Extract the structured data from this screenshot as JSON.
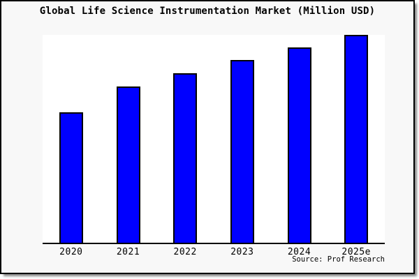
{
  "page": {
    "background": "#ffffff"
  },
  "card": {
    "background": "#f8f8f8",
    "border_color": "#000000",
    "shadow_color": "#8a8a8a"
  },
  "chart_data": {
    "type": "bar",
    "title": "Global Life Science Instrumentation Market (Million USD)",
    "categories": [
      "2020",
      "2021",
      "2022",
      "2023",
      "2024",
      "2025e"
    ],
    "values": [
      62.8,
      75.1,
      81.5,
      87.8,
      93.8,
      100.0
    ],
    "value_scale": "percent_of_tallest_bar (no y-axis labels shown in image)",
    "xlabel": "",
    "ylabel": "",
    "ylim": [
      0,
      100
    ],
    "y_axis_visible": false,
    "gridlines": false,
    "legend": false,
    "plot_background": "#ffffff",
    "axis_color": "#000000",
    "bar_color": "#0000ff",
    "bar_edge_color": "#000000"
  },
  "source": {
    "label": "Source: Prof Research"
  }
}
